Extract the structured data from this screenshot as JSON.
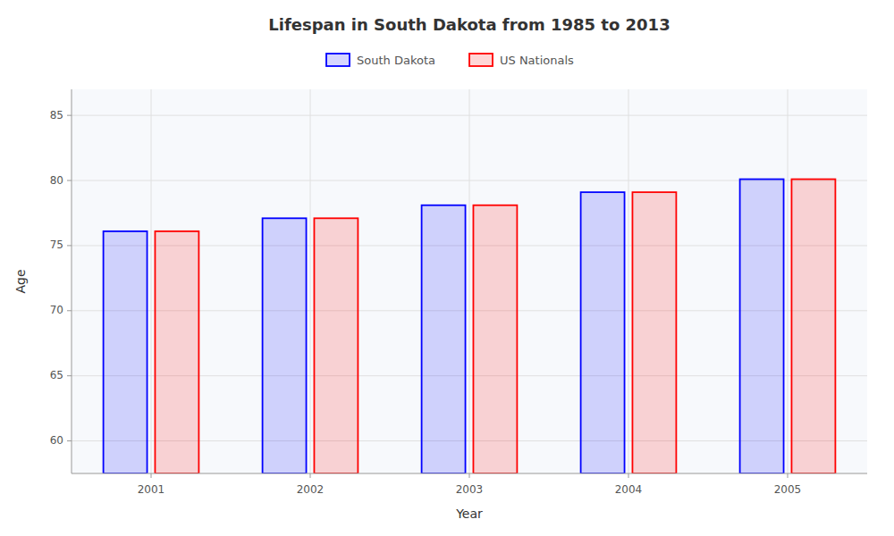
{
  "chart_data": {
    "type": "bar",
    "title": "Lifespan in South Dakota from 1985 to 2013",
    "x_label": "Year",
    "y_label": "Age",
    "categories": [
      "2001",
      "2002",
      "2003",
      "2004",
      "2005"
    ],
    "series": [
      {
        "name": "South Dakota",
        "color": "#0000ff",
        "values": [
          76.1,
          77.1,
          78.1,
          79.1,
          80.1
        ]
      },
      {
        "name": "US Nationals",
        "color": "#ff0000",
        "values": [
          76.1,
          77.1,
          78.1,
          79.1,
          80.1
        ]
      }
    ],
    "ylim": [
      57.5,
      87
    ],
    "yticks": [
      60,
      65,
      70,
      75,
      80,
      85
    ],
    "grid": true,
    "legend": "top"
  }
}
